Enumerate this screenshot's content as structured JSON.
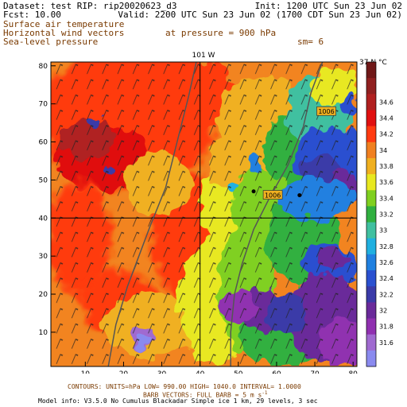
{
  "header": {
    "dataset": "Dataset: test   RIP: rip20020623_d3",
    "init": "Init: 1200 UTC Sun 23 Jun 02",
    "fcst": "Fcst:    10.00",
    "valid": "Valid: 2200 UTC Sun 23 Jun 02 (1700 CDT Sun 23 Jun 02)",
    "field1": "Surface air temperature",
    "field2": "Horizontal wind vectors",
    "field3": "Sea-level pressure",
    "pressure": "at pressure =  900 hPa",
    "sm": "sm= 6"
  },
  "footer": {
    "contours": "CONTOURS:  UNITS=hPa   LOW=   990.00       HIGH=  1040.0      INTERVAL=    1.0000",
    "barbs": "BARB VECTORS:  FULL BARB = 5 m s",
    "barbs_exp": "-1",
    "model": "Model info: V3.5.0 No Cumulus Blackadar  Simple ice    1 km,   29 levels,     3 sec"
  },
  "colors": {
    "pressure_contour": "#555555",
    "label_text": "#7a3a00"
  },
  "chart_data": {
    "type": "heatmap",
    "x_ticks": [
      "10",
      "20",
      "30",
      "40",
      "50",
      "60",
      "70",
      "80"
    ],
    "y_ticks": [
      "10",
      "20",
      "30",
      "40",
      "50",
      "60",
      "70",
      "80"
    ],
    "xlim": [
      1,
      81
    ],
    "ylim": [
      1,
      81
    ],
    "top_axis_label": "101 W",
    "right_axis_label": "37 N",
    "colorbar": {
      "unit": "°C",
      "levels": [
        "31.6",
        "31.8",
        "32",
        "32.2",
        "32.4",
        "32.6",
        "32.8",
        "33",
        "33.2",
        "33.4",
        "33.6",
        "33.8",
        "34",
        "34.2",
        "34.4",
        "34.6"
      ],
      "colors": [
        "#8a8aef",
        "#a06ad0",
        "#9030b0",
        "#6a2a9a",
        "#3a3aa8",
        "#2a50d0",
        "#2080e0",
        "#20b0e0",
        "#40c0a0",
        "#30b040",
        "#80d020",
        "#e8e820",
        "#f0b020",
        "#f08020",
        "#ff3a10",
        "#e01010",
        "#b02020",
        "#902020",
        "#701818"
      ]
    },
    "gridlines": {
      "x": 40,
      "y": 40
    },
    "pressure_contours": [
      {
        "label": "1006",
        "points": [
          [
            39,
            81
          ],
          [
            37,
            72
          ],
          [
            34,
            60
          ],
          [
            31,
            48
          ],
          [
            27,
            38
          ],
          [
            24,
            30
          ],
          [
            21,
            22
          ],
          [
            18,
            12
          ],
          [
            16,
            1
          ]
        ]
      },
      {
        "label": "1006",
        "points": [
          [
            72,
            81
          ],
          [
            69,
            73
          ],
          [
            67,
            64
          ],
          [
            63,
            54
          ],
          [
            58,
            45
          ],
          [
            54,
            37
          ],
          [
            51,
            28
          ],
          [
            49,
            20
          ],
          [
            48,
            10
          ],
          [
            48,
            1
          ]
        ]
      }
    ],
    "contour_labels": [
      {
        "text": "1006",
        "x": 73,
        "y": 68
      },
      {
        "text": "1006",
        "x": 59,
        "y": 46
      }
    ],
    "stations": [
      [
        54,
        47
      ],
      [
        66,
        46
      ]
    ]
  }
}
